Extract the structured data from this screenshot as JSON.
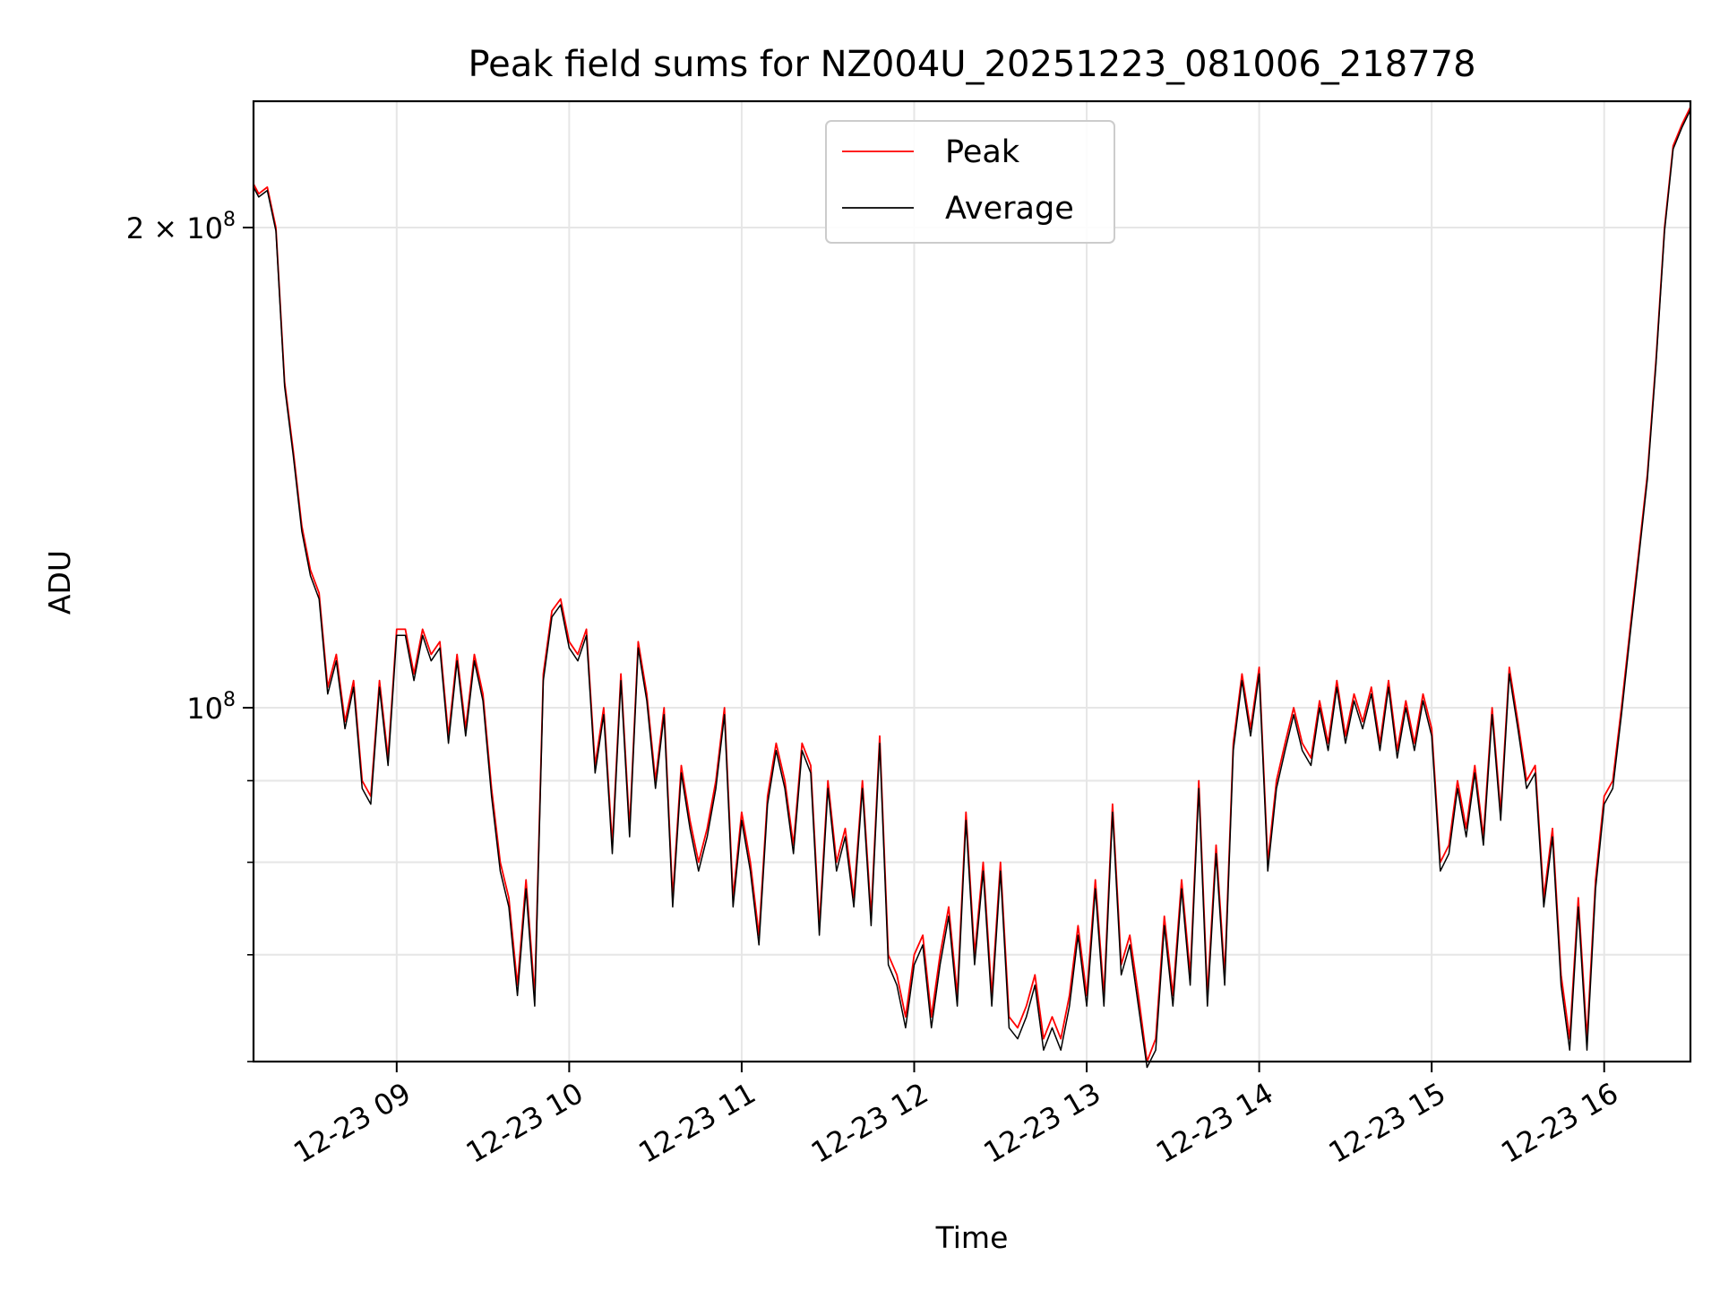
{
  "chart_data": {
    "type": "line",
    "title": "Peak field sums for NZ004U_20251223_081006_218778",
    "xlabel": "Time",
    "ylabel": "ADU",
    "yscale": "log",
    "xlim": [
      8.17,
      16.5
    ],
    "ylim": [
      60000000,
      240000000
    ],
    "x_ticks": [
      {
        "value": 9,
        "label": "12-23 09"
      },
      {
        "value": 10,
        "label": "12-23 10"
      },
      {
        "value": 11,
        "label": "12-23 11"
      },
      {
        "value": 12,
        "label": "12-23 12"
      },
      {
        "value": 13,
        "label": "12-23 13"
      },
      {
        "value": 14,
        "label": "12-23 14"
      },
      {
        "value": 15,
        "label": "12-23 15"
      },
      {
        "value": 16,
        "label": "12-23 16"
      }
    ],
    "y_ticks": [
      {
        "value": 100000000,
        "base": "10",
        "exp": "8",
        "prefix": ""
      },
      {
        "value": 200000000,
        "base": "10",
        "exp": "8",
        "prefix": "2 × "
      }
    ],
    "y_minor_ticks": [
      60000000,
      70000000,
      80000000,
      90000000
    ],
    "grid": true,
    "legend": {
      "position": "top-center",
      "entries": [
        "Peak",
        "Average"
      ]
    },
    "series": [
      {
        "name": "Peak",
        "color": "#ff0000",
        "x": [
          8.17,
          8.2,
          8.25,
          8.3,
          8.35,
          8.4,
          8.45,
          8.5,
          8.55,
          8.6,
          8.65,
          8.7,
          8.75,
          8.8,
          8.85,
          8.9,
          8.95,
          9.0,
          9.05,
          9.1,
          9.15,
          9.2,
          9.25,
          9.3,
          9.35,
          9.4,
          9.45,
          9.5,
          9.55,
          9.6,
          9.65,
          9.7,
          9.75,
          9.8,
          9.85,
          9.9,
          9.95,
          10.0,
          10.05,
          10.1,
          10.15,
          10.2,
          10.25,
          10.3,
          10.35,
          10.4,
          10.45,
          10.5,
          10.55,
          10.6,
          10.65,
          10.7,
          10.75,
          10.8,
          10.85,
          10.9,
          10.95,
          11.0,
          11.05,
          11.1,
          11.15,
          11.2,
          11.25,
          11.3,
          11.35,
          11.4,
          11.45,
          11.5,
          11.55,
          11.6,
          11.65,
          11.7,
          11.75,
          11.8,
          11.85,
          11.9,
          11.95,
          12.0,
          12.05,
          12.1,
          12.15,
          12.2,
          12.25,
          12.3,
          12.35,
          12.4,
          12.45,
          12.5,
          12.55,
          12.6,
          12.65,
          12.7,
          12.75,
          12.8,
          12.85,
          12.9,
          12.95,
          13.0,
          13.05,
          13.1,
          13.15,
          13.2,
          13.25,
          13.3,
          13.35,
          13.4,
          13.45,
          13.5,
          13.55,
          13.6,
          13.65,
          13.7,
          13.75,
          13.8,
          13.85,
          13.9,
          13.95,
          14.0,
          14.05,
          14.1,
          14.15,
          14.2,
          14.25,
          14.3,
          14.35,
          14.4,
          14.45,
          14.5,
          14.55,
          14.6,
          14.65,
          14.7,
          14.75,
          14.8,
          14.85,
          14.9,
          14.95,
          15.0,
          15.05,
          15.1,
          15.15,
          15.2,
          15.25,
          15.3,
          15.35,
          15.4,
          15.45,
          15.5,
          15.55,
          15.6,
          15.65,
          15.7,
          15.75,
          15.8,
          15.85,
          15.9,
          15.95,
          16.0,
          16.05,
          16.1,
          16.15,
          16.2,
          16.25,
          16.3,
          16.35,
          16.4,
          16.45,
          16.5
        ],
        "values": [
          213000000,
          210000000,
          212000000,
          200000000,
          160000000,
          145000000,
          130000000,
          122000000,
          118000000,
          103000000,
          108000000,
          98000000,
          104000000,
          90000000,
          88000000,
          104000000,
          93000000,
          112000000,
          112000000,
          105000000,
          112000000,
          108000000,
          110000000,
          96000000,
          108000000,
          97000000,
          108000000,
          102000000,
          89000000,
          80000000,
          76000000,
          67000000,
          78000000,
          66000000,
          105000000,
          115000000,
          117000000,
          110000000,
          108000000,
          112000000,
          92000000,
          100000000,
          82000000,
          105000000,
          84000000,
          110000000,
          102000000,
          90000000,
          100000000,
          76000000,
          92000000,
          85000000,
          80000000,
          84000000,
          90000000,
          100000000,
          76000000,
          86000000,
          80000000,
          72000000,
          88000000,
          95000000,
          90000000,
          82000000,
          95000000,
          92000000,
          73000000,
          90000000,
          80000000,
          84000000,
          76000000,
          90000000,
          74000000,
          96000000,
          70000000,
          68000000,
          64000000,
          70000000,
          72000000,
          64000000,
          70000000,
          75000000,
          66000000,
          86000000,
          70000000,
          80000000,
          66000000,
          80000000,
          64000000,
          63000000,
          65000000,
          68000000,
          62000000,
          64000000,
          62000000,
          66000000,
          73000000,
          66000000,
          78000000,
          66000000,
          87000000,
          69000000,
          72000000,
          66000000,
          60000000,
          62000000,
          74000000,
          66000000,
          78000000,
          68000000,
          90000000,
          66000000,
          82000000,
          68000000,
          95000000,
          105000000,
          97000000,
          106000000,
          80000000,
          90000000,
          95000000,
          100000000,
          95000000,
          93000000,
          101000000,
          95000000,
          104000000,
          96000000,
          102000000,
          98000000,
          103000000,
          95000000,
          104000000,
          94000000,
          101000000,
          95000000,
          102000000,
          97000000,
          80000000,
          82000000,
          90000000,
          84000000,
          92000000,
          83000000,
          100000000,
          86000000,
          106000000,
          98000000,
          90000000,
          92000000,
          76000000,
          84000000,
          68000000,
          62000000,
          76000000,
          62000000,
          78000000,
          88000000,
          90000000,
          100000000,
          112000000,
          125000000,
          140000000,
          165000000,
          200000000,
          225000000,
          232000000,
          238000000
        ]
      },
      {
        "name": "Average",
        "color": "#000000",
        "x": [
          8.17,
          8.2,
          8.25,
          8.3,
          8.35,
          8.4,
          8.45,
          8.5,
          8.55,
          8.6,
          8.65,
          8.7,
          8.75,
          8.8,
          8.85,
          8.9,
          8.95,
          9.0,
          9.05,
          9.1,
          9.15,
          9.2,
          9.25,
          9.3,
          9.35,
          9.4,
          9.45,
          9.5,
          9.55,
          9.6,
          9.65,
          9.7,
          9.75,
          9.8,
          9.85,
          9.9,
          9.95,
          10.0,
          10.05,
          10.1,
          10.15,
          10.2,
          10.25,
          10.3,
          10.35,
          10.4,
          10.45,
          10.5,
          10.55,
          10.6,
          10.65,
          10.7,
          10.75,
          10.8,
          10.85,
          10.9,
          10.95,
          11.0,
          11.05,
          11.1,
          11.15,
          11.2,
          11.25,
          11.3,
          11.35,
          11.4,
          11.45,
          11.5,
          11.55,
          11.6,
          11.65,
          11.7,
          11.75,
          11.8,
          11.85,
          11.9,
          11.95,
          12.0,
          12.05,
          12.1,
          12.15,
          12.2,
          12.25,
          12.3,
          12.35,
          12.4,
          12.45,
          12.5,
          12.55,
          12.6,
          12.65,
          12.7,
          12.75,
          12.8,
          12.85,
          12.9,
          12.95,
          13.0,
          13.05,
          13.1,
          13.15,
          13.2,
          13.25,
          13.3,
          13.35,
          13.4,
          13.45,
          13.5,
          13.55,
          13.6,
          13.65,
          13.7,
          13.75,
          13.8,
          13.85,
          13.9,
          13.95,
          14.0,
          14.05,
          14.1,
          14.15,
          14.2,
          14.25,
          14.3,
          14.35,
          14.4,
          14.45,
          14.5,
          14.55,
          14.6,
          14.65,
          14.7,
          14.75,
          14.8,
          14.85,
          14.9,
          14.95,
          15.0,
          15.05,
          15.1,
          15.15,
          15.2,
          15.25,
          15.3,
          15.35,
          15.4,
          15.45,
          15.5,
          15.55,
          15.6,
          15.65,
          15.7,
          15.75,
          15.8,
          15.85,
          15.9,
          15.95,
          16.0,
          16.05,
          16.1,
          16.15,
          16.2,
          16.25,
          16.3,
          16.35,
          16.4,
          16.45,
          16.5
        ],
        "values": [
          212000000,
          209000000,
          211000000,
          199000000,
          159000000,
          144000000,
          129000000,
          121000000,
          117000000,
          102000000,
          107000000,
          97000000,
          103000000,
          89000000,
          87000000,
          103000000,
          92000000,
          111000000,
          111000000,
          104000000,
          111000000,
          107000000,
          109000000,
          95000000,
          107000000,
          96000000,
          107000000,
          101000000,
          88000000,
          79000000,
          75000000,
          66000000,
          77000000,
          65000000,
          104000000,
          114000000,
          116000000,
          109000000,
          107000000,
          111000000,
          91000000,
          99000000,
          81000000,
          104000000,
          83000000,
          109000000,
          101000000,
          89000000,
          99000000,
          75000000,
          91000000,
          84000000,
          79000000,
          83000000,
          89000000,
          99000000,
          75000000,
          85000000,
          79000000,
          71000000,
          87000000,
          94000000,
          89000000,
          81000000,
          94000000,
          91000000,
          72000000,
          89000000,
          79000000,
          83000000,
          75000000,
          89000000,
          73000000,
          95000000,
          69000000,
          67000000,
          63000000,
          69000000,
          71000000,
          63000000,
          69000000,
          74000000,
          65000000,
          85000000,
          69000000,
          79000000,
          65000000,
          79000000,
          63000000,
          62000000,
          64000000,
          67000000,
          61000000,
          63000000,
          61000000,
          65000000,
          72000000,
          65000000,
          77000000,
          65000000,
          86000000,
          68000000,
          71000000,
          65000000,
          59500000,
          61000000,
          73000000,
          65000000,
          77000000,
          67000000,
          89000000,
          65000000,
          81000000,
          67000000,
          94000000,
          104000000,
          96000000,
          105000000,
          79000000,
          89000000,
          94000000,
          99000000,
          94000000,
          92000000,
          100000000,
          94000000,
          103000000,
          95000000,
          101000000,
          97000000,
          102000000,
          94000000,
          103000000,
          93000000,
          100000000,
          94000000,
          101000000,
          96000000,
          79000000,
          81000000,
          89000000,
          83000000,
          91000000,
          82000000,
          99000000,
          85000000,
          105000000,
          97000000,
          89000000,
          91000000,
          75000000,
          83000000,
          67000000,
          61000000,
          75000000,
          61000000,
          77000000,
          87000000,
          89000000,
          99000000,
          111000000,
          124000000,
          139000000,
          164000000,
          199000000,
          224000000,
          231000000,
          237000000
        ]
      }
    ]
  }
}
